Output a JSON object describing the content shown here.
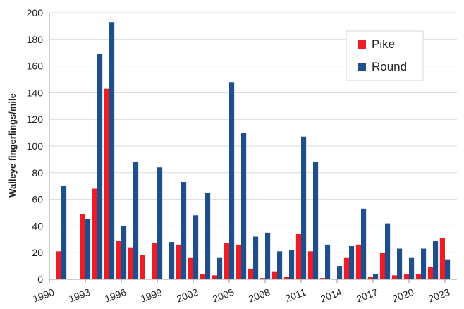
{
  "chart_data": {
    "type": "bar",
    "ylabel": "Walleye fingerlings/mile",
    "xlabel": "",
    "ylim": [
      0,
      200
    ],
    "yticks": [
      0,
      20,
      40,
      60,
      80,
      100,
      120,
      140,
      160,
      180,
      200
    ],
    "xlim": [
      1990,
      2024
    ],
    "xticks": [
      1990,
      1993,
      1996,
      1999,
      2002,
      2005,
      2008,
      2011,
      2014,
      2017,
      2020,
      2023
    ],
    "x": [
      1991,
      1992,
      1993,
      1994,
      1995,
      1996,
      1997,
      1998,
      1999,
      2000,
      2001,
      2002,
      2003,
      2004,
      2005,
      2006,
      2007,
      2008,
      2009,
      2010,
      2011,
      2012,
      2013,
      2014,
      2015,
      2016,
      2017,
      2018,
      2019,
      2020,
      2021,
      2022,
      2023
    ],
    "series": [
      {
        "name": "Pike",
        "color": "#ee1c25",
        "values": [
          21,
          0,
          49,
          68,
          143,
          29,
          24,
          18,
          27,
          0,
          26,
          16,
          4,
          3,
          27,
          26,
          8,
          1,
          6,
          2,
          34,
          21,
          1,
          0,
          16,
          26,
          2,
          20,
          3,
          4,
          4,
          9,
          31
        ]
      },
      {
        "name": "Round",
        "color": "#1f4e8c",
        "values": [
          70,
          0,
          45,
          169,
          193,
          40,
          88,
          0,
          84,
          28,
          73,
          48,
          65,
          16,
          148,
          110,
          32,
          35,
          21,
          22,
          107,
          88,
          26,
          10,
          25,
          53,
          4,
          42,
          23,
          16,
          23,
          29,
          15
        ]
      }
    ],
    "legend_position": "top-right",
    "grid": "horizontal"
  }
}
